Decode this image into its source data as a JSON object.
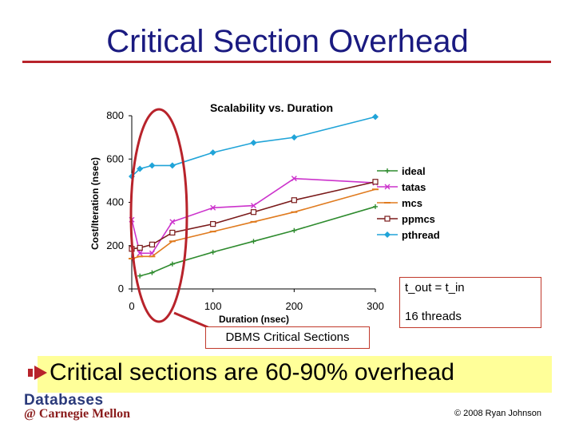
{
  "slide": {
    "title": "Critical Section Overhead",
    "bullet": "Critical sections are 60-90% overhead",
    "logo_line1": "Databases",
    "logo_line2": "@ Carnegie Mellon",
    "copyright": "© 2008 Ryan Johnson",
    "callout_line1": "t_out = t_in",
    "callout_line2": "16 threads",
    "dbms_label": "DBMS Critical Sections",
    "accent_color": "#b8232b",
    "title_color": "#1a1a80"
  },
  "chart_data": {
    "type": "line",
    "title": "Scalability vs. Duration",
    "xlabel": "Duration (nsec)",
    "ylabel": "Cost/Iteration (nsec)",
    "xlim": [
      0,
      300
    ],
    "ylim": [
      0,
      800
    ],
    "xticks": [
      0,
      100,
      200,
      300
    ],
    "yticks": [
      0,
      200,
      400,
      600,
      800
    ],
    "legend_position": "right",
    "series": [
      {
        "name": "ideal",
        "color": "#2e8b2e",
        "marker": "plus",
        "x": [
          10,
          25,
          50,
          100,
          150,
          200,
          300
        ],
        "y": [
          60,
          75,
          115,
          170,
          220,
          270,
          380
        ]
      },
      {
        "name": "tatas",
        "color": "#cc33cc",
        "marker": "x",
        "x": [
          0,
          10,
          25,
          50,
          100,
          150,
          200,
          300
        ],
        "y": [
          320,
          165,
          165,
          310,
          375,
          385,
          510,
          490
        ]
      },
      {
        "name": "mcs",
        "color": "#e07b1f",
        "marker": "dash",
        "x": [
          0,
          10,
          25,
          50,
          100,
          150,
          200,
          300
        ],
        "y": [
          140,
          150,
          150,
          220,
          265,
          310,
          355,
          460
        ]
      },
      {
        "name": "ppmcs",
        "color": "#7a1a1a",
        "marker": "square",
        "x": [
          0,
          10,
          25,
          50,
          100,
          150,
          200,
          300
        ],
        "y": [
          185,
          190,
          205,
          260,
          300,
          355,
          410,
          495
        ]
      },
      {
        "name": "pthread",
        "color": "#20a4d8",
        "marker": "diamond",
        "x": [
          0,
          10,
          25,
          50,
          100,
          150,
          200,
          300
        ],
        "y": [
          520,
          555,
          570,
          570,
          630,
          675,
          700,
          795
        ]
      }
    ]
  }
}
